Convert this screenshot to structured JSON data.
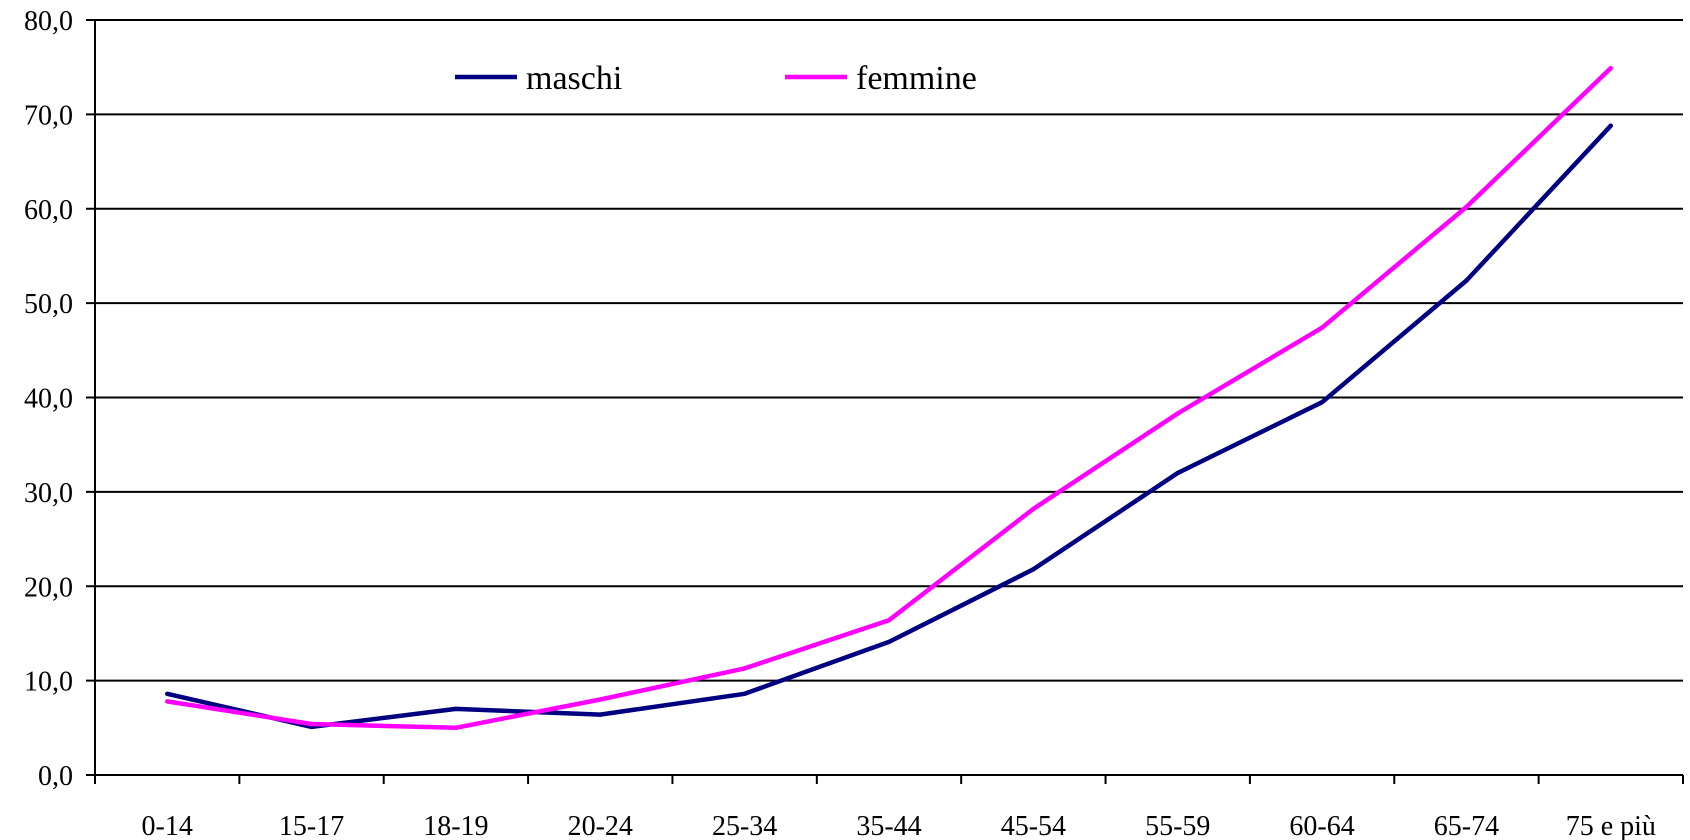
{
  "chart_data": {
    "type": "line",
    "categories": [
      "0-14",
      "15-17",
      "18-19",
      "20-24",
      "25-34",
      "35-44",
      "45-54",
      "55-59",
      "60-64",
      "65-74",
      "75 e più"
    ],
    "series": [
      {
        "name": "maschi",
        "color": "#000080",
        "values": [
          8.6,
          5.1,
          7.0,
          6.4,
          8.6,
          14.1,
          21.8,
          32.0,
          39.5,
          52.4,
          68.8
        ]
      },
      {
        "name": "femmine",
        "color": "#ff00ff",
        "values": [
          7.8,
          5.4,
          5.0,
          8.0,
          11.3,
          16.4,
          28.2,
          38.3,
          47.4,
          60.2,
          74.9
        ]
      }
    ],
    "y_ticks": [
      "0,0",
      "10,0",
      "20,0",
      "30,0",
      "40,0",
      "50,0",
      "60,0",
      "70,0",
      "80,0"
    ],
    "ylim": [
      0,
      80
    ],
    "grid": "horizontal",
    "legend": "top-center",
    "title": "",
    "xlabel": "",
    "ylabel": ""
  }
}
